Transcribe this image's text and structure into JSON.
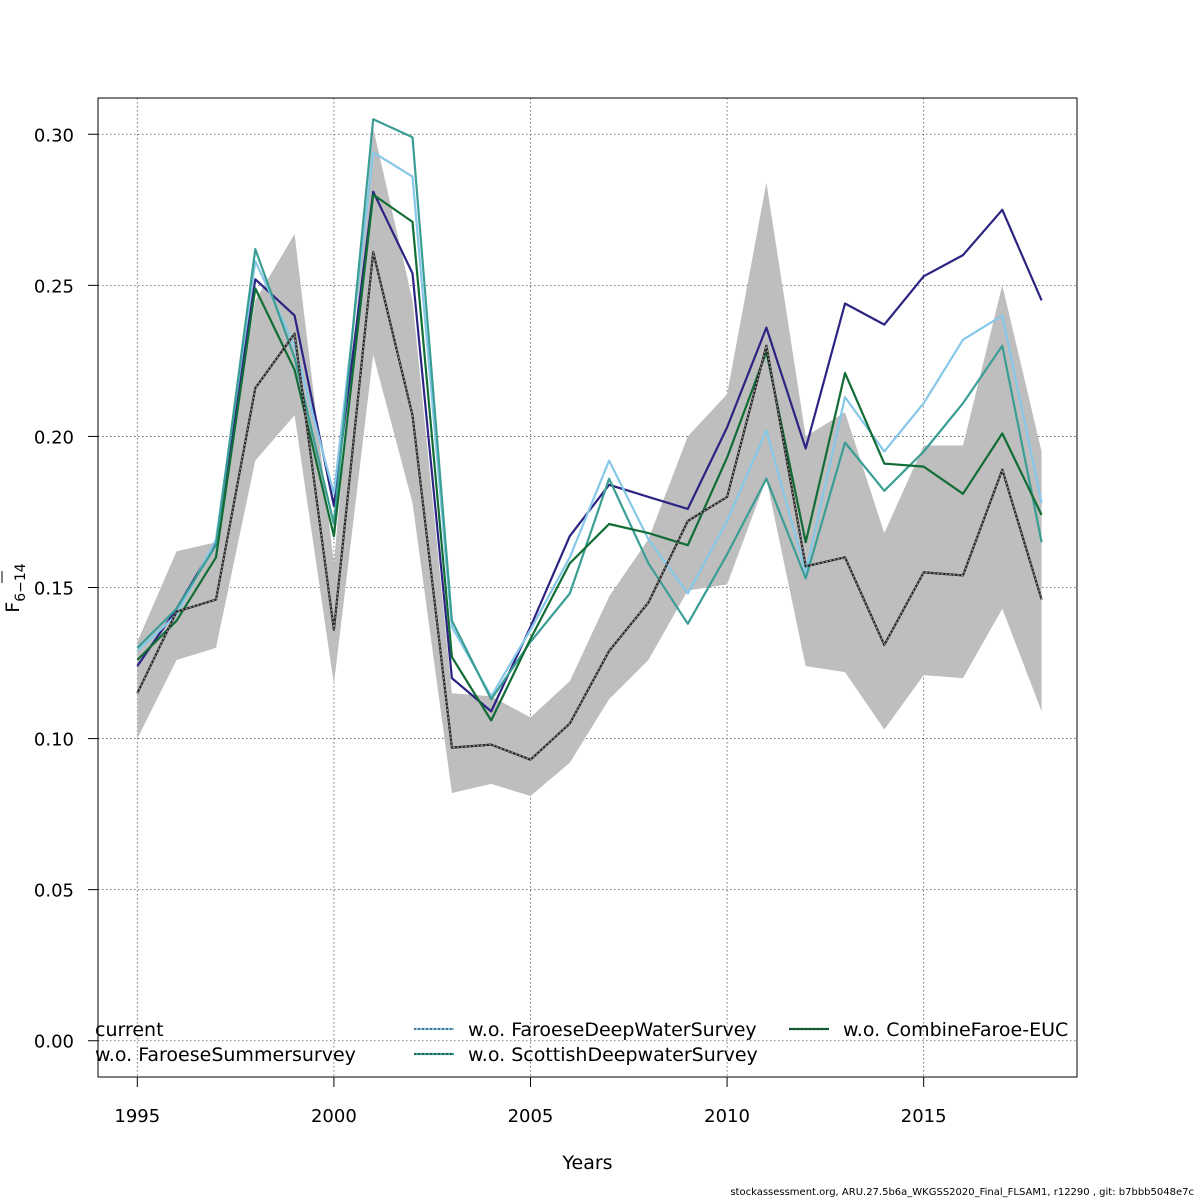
{
  "chart_data": {
    "type": "line",
    "xlabel": "Years",
    "ylabel": "F",
    "ylabel_subscript": "6−14",
    "xlim": [
      1994,
      2018.9
    ],
    "ylim": [
      -0.012,
      0.312
    ],
    "xticks": [
      1995,
      2000,
      2005,
      2010,
      2015
    ],
    "yticks": [
      0.0,
      0.05,
      0.1,
      0.15,
      0.2,
      0.25,
      0.3
    ],
    "ytick_labels": [
      "0.00",
      "0.05",
      "0.10",
      "0.15",
      "0.20",
      "0.25",
      "0.30"
    ],
    "grid": true,
    "legend_position": "bottom",
    "x": [
      1995,
      1996,
      1997,
      1998,
      1999,
      2000,
      2001,
      2002,
      2003,
      2004,
      2005,
      2006,
      2007,
      2008,
      2009,
      2010,
      2011,
      2012,
      2013,
      2014,
      2015,
      2016,
      2017,
      2018
    ],
    "confidence_band": {
      "color": "#bebebe",
      "lower": [
        0.1,
        0.126,
        0.13,
        0.192,
        0.207,
        0.118,
        0.227,
        0.178,
        0.082,
        0.085,
        0.081,
        0.092,
        0.113,
        0.126,
        0.149,
        0.151,
        0.186,
        0.124,
        0.122,
        0.103,
        0.121,
        0.12,
        0.143,
        0.109
      ],
      "upper": [
        0.132,
        0.162,
        0.165,
        0.245,
        0.267,
        0.158,
        0.302,
        0.245,
        0.115,
        0.114,
        0.107,
        0.119,
        0.147,
        0.166,
        0.2,
        0.214,
        0.284,
        0.2,
        0.208,
        0.168,
        0.197,
        0.197,
        0.25,
        0.195
      ]
    },
    "series": [
      {
        "name": "current",
        "color": "#222222",
        "dash": "dotted-over-solid",
        "values": [
          0.115,
          0.142,
          0.146,
          0.216,
          0.234,
          0.136,
          0.261,
          0.207,
          0.097,
          0.098,
          0.093,
          0.105,
          0.129,
          0.145,
          0.172,
          0.18,
          0.23,
          0.157,
          0.16,
          0.131,
          0.155,
          0.154,
          0.189,
          0.146
        ]
      },
      {
        "name": "w.o. FaroeseSummersurvey",
        "color": "#2c2483",
        "values": [
          0.124,
          0.143,
          0.165,
          0.252,
          0.24,
          0.177,
          0.281,
          0.254,
          0.12,
          0.109,
          0.137,
          0.167,
          0.184,
          0.18,
          0.176,
          0.203,
          0.236,
          0.196,
          0.244,
          0.237,
          0.253,
          0.26,
          0.275,
          0.245
        ]
      },
      {
        "name": "w.o. FaroeseDeepWaterSurvey",
        "color": "#87c8e8",
        "values": [
          0.129,
          0.141,
          0.166,
          0.258,
          0.23,
          0.181,
          0.294,
          0.286,
          0.137,
          0.114,
          0.136,
          0.16,
          0.192,
          0.166,
          0.148,
          0.172,
          0.202,
          0.155,
          0.213,
          0.195,
          0.211,
          0.232,
          0.24,
          0.178
        ]
      },
      {
        "name": "w.o. ScottishDeepwaterSurvey",
        "color": "#3b9e94",
        "values": [
          0.13,
          0.143,
          0.164,
          0.262,
          0.226,
          0.171,
          0.305,
          0.299,
          0.139,
          0.113,
          0.132,
          0.148,
          0.186,
          0.158,
          0.138,
          0.161,
          0.186,
          0.153,
          0.198,
          0.182,
          0.195,
          0.211,
          0.23,
          0.165
        ]
      },
      {
        "name": "w.o. CombineFaroe-EUC",
        "color": "#116d35",
        "values": [
          0.126,
          0.139,
          0.16,
          0.249,
          0.222,
          0.167,
          0.28,
          0.271,
          0.127,
          0.106,
          0.133,
          0.158,
          0.171,
          0.168,
          0.164,
          0.193,
          0.228,
          0.165,
          0.221,
          0.191,
          0.19,
          0.181,
          0.201,
          0.174
        ]
      }
    ],
    "legend_layout": [
      {
        "series": 0,
        "col": 0,
        "row": 0
      },
      {
        "series": 1,
        "col": 0,
        "row": 1
      },
      {
        "series": 2,
        "col": 1,
        "row": 0
      },
      {
        "series": 3,
        "col": 1,
        "row": 1
      },
      {
        "series": 4,
        "col": 2,
        "row": 0
      }
    ]
  },
  "footer_text": "stockassessment.org, ARU.27.5b6a_WKGSS2020_Final_FLSAM1, r12290 , git: b7bbb5048e7c"
}
